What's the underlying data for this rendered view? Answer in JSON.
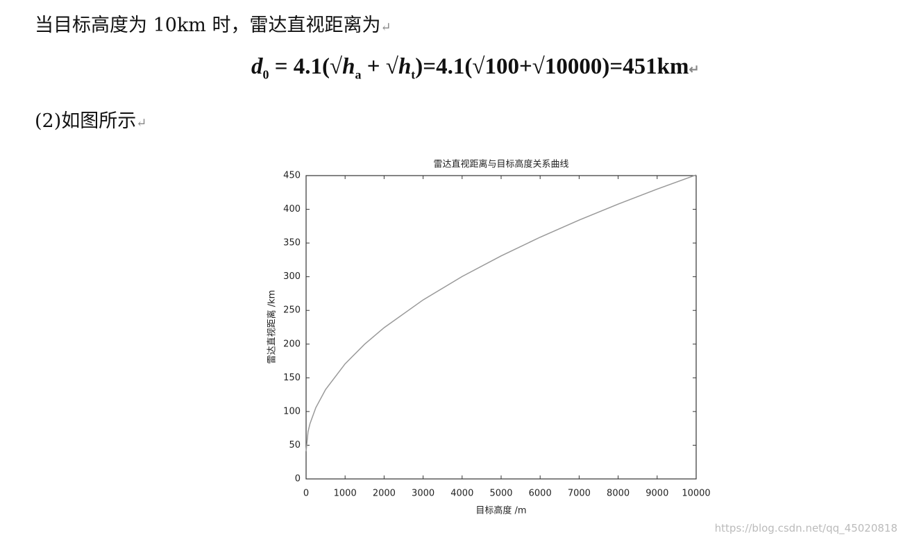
{
  "document": {
    "paragraphs": [
      "当目标高度为 10km 时，雷达直视距离为",
      "(2)如图所示"
    ],
    "return_mark": "↵",
    "formula": {
      "parts": [
        "d",
        "0",
        " = 4.1(√",
        "h",
        "a",
        " + √",
        "h",
        "t",
        ")=4.1(√100+√10000)=451km"
      ]
    },
    "watermark": "https://blog.csdn.net/qq_45020818"
  },
  "chart_data": {
    "type": "line",
    "title": "雷达直视距离与目标高度关系曲线",
    "x_label": "目标高度 /m",
    "y_label": "雷达直视距离 /km",
    "x": [
      0,
      50,
      100,
      250,
      500,
      1000,
      1500,
      2000,
      3000,
      4000,
      5000,
      6000,
      7000,
      8000,
      9000,
      10000
    ],
    "values": [
      41,
      70,
      82,
      105.8,
      132.7,
      170.7,
      199.8,
      224.4,
      265.6,
      300.3,
      330.9,
      358.6,
      384.0,
      407.7,
      430.0,
      451
    ],
    "color": "#999999",
    "xlim": [
      0,
      10000
    ],
    "ylim": [
      0,
      450
    ],
    "xticks": [
      0,
      1000,
      2000,
      3000,
      4000,
      5000,
      6000,
      7000,
      8000,
      9000,
      10000
    ],
    "yticks": [
      0,
      50,
      100,
      150,
      200,
      250,
      300,
      350,
      400,
      450
    ],
    "grid": false
  }
}
